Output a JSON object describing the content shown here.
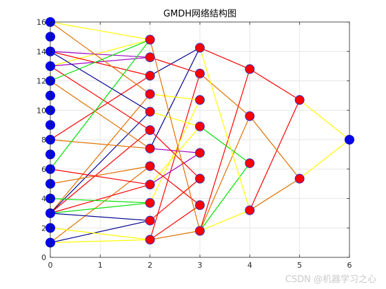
{
  "watermark": "CSDN @机器学习之心",
  "chart_data": {
    "type": "scatter",
    "title": "GMDH网络结构图",
    "xlabel": "",
    "ylabel": "",
    "xlim": [
      0,
      6
    ],
    "ylim": [
      0,
      16
    ],
    "xticks": [
      0,
      1,
      2,
      3,
      4,
      5,
      6
    ],
    "yticks": [
      0,
      2,
      4,
      6,
      8,
      10,
      12,
      14,
      16
    ],
    "grid": true,
    "nodes": [
      {
        "id": "L0_1",
        "layer": 0,
        "x": 0,
        "y": 1,
        "color": "#0000ff"
      },
      {
        "id": "L0_2",
        "layer": 0,
        "x": 0,
        "y": 2,
        "color": "#0000ff"
      },
      {
        "id": "L0_3",
        "layer": 0,
        "x": 0,
        "y": 3,
        "color": "#0000ff"
      },
      {
        "id": "L0_4",
        "layer": 0,
        "x": 0,
        "y": 4,
        "color": "#0000ff"
      },
      {
        "id": "L0_5",
        "layer": 0,
        "x": 0,
        "y": 5,
        "color": "#0000ff"
      },
      {
        "id": "L0_6",
        "layer": 0,
        "x": 0,
        "y": 6,
        "color": "#0000ff"
      },
      {
        "id": "L0_7",
        "layer": 0,
        "x": 0,
        "y": 7,
        "color": "#0000ff"
      },
      {
        "id": "L0_8",
        "layer": 0,
        "x": 0,
        "y": 8,
        "color": "#0000ff"
      },
      {
        "id": "L0_9",
        "layer": 0,
        "x": 0,
        "y": 9,
        "color": "#0000ff"
      },
      {
        "id": "L0_10",
        "layer": 0,
        "x": 0,
        "y": 10,
        "color": "#0000ff"
      },
      {
        "id": "L0_11",
        "layer": 0,
        "x": 0,
        "y": 11,
        "color": "#0000ff"
      },
      {
        "id": "L0_12",
        "layer": 0,
        "x": 0,
        "y": 12,
        "color": "#0000ff"
      },
      {
        "id": "L0_13",
        "layer": 0,
        "x": 0,
        "y": 13,
        "color": "#0000ff"
      },
      {
        "id": "L0_14",
        "layer": 0,
        "x": 0,
        "y": 14,
        "color": "#0000ff"
      },
      {
        "id": "L0_15",
        "layer": 0,
        "x": 0,
        "y": 15,
        "color": "#0000ff"
      },
      {
        "id": "L0_16",
        "layer": 0,
        "x": 0,
        "y": 16,
        "color": "#0000ff"
      },
      {
        "id": "L1_1",
        "layer": 1,
        "x": 2,
        "y": 1.2,
        "color": "#ff0000"
      },
      {
        "id": "L1_2",
        "layer": 1,
        "x": 2,
        "y": 2.5,
        "color": "#ff0000"
      },
      {
        "id": "L1_3",
        "layer": 1,
        "x": 2,
        "y": 3.7,
        "color": "#ff0000"
      },
      {
        "id": "L1_4",
        "layer": 1,
        "x": 2,
        "y": 4.95,
        "color": "#ff0000"
      },
      {
        "id": "L1_5",
        "layer": 1,
        "x": 2,
        "y": 6.2,
        "color": "#ff0000"
      },
      {
        "id": "L1_6",
        "layer": 1,
        "x": 2,
        "y": 7.4,
        "color": "#ff0000"
      },
      {
        "id": "L1_7",
        "layer": 1,
        "x": 2,
        "y": 8.65,
        "color": "#ff0000"
      },
      {
        "id": "L1_8",
        "layer": 1,
        "x": 2,
        "y": 9.9,
        "color": "#ff0000"
      },
      {
        "id": "L1_9",
        "layer": 1,
        "x": 2,
        "y": 11.1,
        "color": "#ff0000"
      },
      {
        "id": "L1_10",
        "layer": 1,
        "x": 2,
        "y": 12.35,
        "color": "#ff0000"
      },
      {
        "id": "L1_11",
        "layer": 1,
        "x": 2,
        "y": 13.6,
        "color": "#ff0000"
      },
      {
        "id": "L1_12",
        "layer": 1,
        "x": 2,
        "y": 14.8,
        "color": "#ff0000"
      },
      {
        "id": "L2_1",
        "layer": 2,
        "x": 3,
        "y": 1.8,
        "color": "#ff0000"
      },
      {
        "id": "L2_2",
        "layer": 2,
        "x": 3,
        "y": 3.55,
        "color": "#ff0000"
      },
      {
        "id": "L2_3",
        "layer": 2,
        "x": 3,
        "y": 5.35,
        "color": "#ff0000"
      },
      {
        "id": "L2_4",
        "layer": 2,
        "x": 3,
        "y": 7.1,
        "color": "#ff0000"
      },
      {
        "id": "L2_5",
        "layer": 2,
        "x": 3,
        "y": 8.9,
        "color": "#ff0000"
      },
      {
        "id": "L2_6",
        "layer": 2,
        "x": 3,
        "y": 10.7,
        "color": "#ff0000"
      },
      {
        "id": "L2_7",
        "layer": 2,
        "x": 3,
        "y": 12.5,
        "color": "#ff0000"
      },
      {
        "id": "L2_8",
        "layer": 2,
        "x": 3,
        "y": 14.25,
        "color": "#ff0000"
      },
      {
        "id": "L3_1",
        "layer": 3,
        "x": 4,
        "y": 3.2,
        "color": "#ff0000"
      },
      {
        "id": "L3_2",
        "layer": 3,
        "x": 4,
        "y": 6.4,
        "color": "#ff0000"
      },
      {
        "id": "L3_3",
        "layer": 3,
        "x": 4,
        "y": 9.6,
        "color": "#ff0000"
      },
      {
        "id": "L3_4",
        "layer": 3,
        "x": 4,
        "y": 12.8,
        "color": "#ff0000"
      },
      {
        "id": "L4_1",
        "layer": 4,
        "x": 5,
        "y": 5.35,
        "color": "#ff0000"
      },
      {
        "id": "L4_2",
        "layer": 4,
        "x": 5,
        "y": 10.7,
        "color": "#ff0000"
      },
      {
        "id": "L5_1",
        "layer": 5,
        "x": 6,
        "y": 8,
        "color": "#0000ff"
      }
    ],
    "edges": [
      {
        "from": "L0_16",
        "to": "L1_12",
        "color": "#ffff00"
      },
      {
        "from": "L0_13",
        "to": "L1_12",
        "color": "#ffff00"
      },
      {
        "from": "L0_14",
        "to": "L1_11",
        "color": "#a000c0"
      },
      {
        "from": "L0_13",
        "to": "L1_11",
        "color": "#a000c0"
      },
      {
        "from": "L0_14",
        "to": "L1_10",
        "color": "#ff0000"
      },
      {
        "from": "L0_8",
        "to": "L1_10",
        "color": "#ff0000"
      },
      {
        "from": "L0_16",
        "to": "L1_9",
        "color": "#e07000"
      },
      {
        "from": "L0_3",
        "to": "L1_9",
        "color": "#e07000"
      },
      {
        "from": "L0_14",
        "to": "L1_8",
        "color": "#000090"
      },
      {
        "from": "L0_3",
        "to": "L1_8",
        "color": "#000090"
      },
      {
        "from": "L0_13",
        "to": "L1_7",
        "color": "#ff0000"
      },
      {
        "from": "L0_3",
        "to": "L1_7",
        "color": "#ff0000"
      },
      {
        "from": "L0_12",
        "to": "L1_6",
        "color": "#e07000"
      },
      {
        "from": "L0_8",
        "to": "L1_6",
        "color": "#e07000"
      },
      {
        "from": "L0_5",
        "to": "L1_5",
        "color": "#e07000"
      },
      {
        "from": "L0_1",
        "to": "L1_5",
        "color": "#e07000"
      },
      {
        "from": "L0_6",
        "to": "L1_4",
        "color": "#ff0000"
      },
      {
        "from": "L0_3",
        "to": "L1_4",
        "color": "#ff0000"
      },
      {
        "from": "L0_4",
        "to": "L1_3",
        "color": "#00e000"
      },
      {
        "from": "L0_3",
        "to": "L1_3",
        "color": "#00e000"
      },
      {
        "from": "L0_3",
        "to": "L1_2",
        "color": "#000090"
      },
      {
        "from": "L0_1",
        "to": "L1_2",
        "color": "#000090"
      },
      {
        "from": "L0_2",
        "to": "L1_1",
        "color": "#ffff00"
      },
      {
        "from": "L0_1",
        "to": "L1_1",
        "color": "#ffff00"
      },
      {
        "from": "L0_12",
        "to": "L1_12",
        "color": "#00e000"
      },
      {
        "from": "L0_6",
        "to": "L1_12",
        "color": "#00e000"
      },
      {
        "from": "L1_10",
        "to": "L2_8",
        "color": "#000090"
      },
      {
        "from": "L1_6",
        "to": "L2_8",
        "color": "#000090"
      },
      {
        "from": "L1_11",
        "to": "L2_7",
        "color": "#ff0000"
      },
      {
        "from": "L1_1",
        "to": "L2_7",
        "color": "#ff0000"
      },
      {
        "from": "L1_9",
        "to": "L2_6",
        "color": "#ffff00"
      },
      {
        "from": "L1_3",
        "to": "L2_6",
        "color": "#ffff00"
      },
      {
        "from": "L1_8",
        "to": "L2_5",
        "color": "#ffff00"
      },
      {
        "from": "L1_4",
        "to": "L2_5",
        "color": "#ffff00"
      },
      {
        "from": "L1_6",
        "to": "L2_4",
        "color": "#a000c0"
      },
      {
        "from": "L1_4",
        "to": "L2_4",
        "color": "#a000c0"
      },
      {
        "from": "L1_7",
        "to": "L2_3",
        "color": "#ff0000"
      },
      {
        "from": "L1_2",
        "to": "L2_3",
        "color": "#ff0000"
      },
      {
        "from": "L1_5",
        "to": "L2_2",
        "color": "#ff0000"
      },
      {
        "from": "L1_1",
        "to": "L2_2",
        "color": "#ff0000"
      },
      {
        "from": "L1_12",
        "to": "L2_1",
        "color": "#e07000"
      },
      {
        "from": "L1_1",
        "to": "L2_1",
        "color": "#e07000"
      },
      {
        "from": "L2_8",
        "to": "L3_4",
        "color": "#ff0000"
      },
      {
        "from": "L2_1",
        "to": "L3_4",
        "color": "#ff0000"
      },
      {
        "from": "L2_7",
        "to": "L3_3",
        "color": "#e07000"
      },
      {
        "from": "L2_1",
        "to": "L3_3",
        "color": "#e07000"
      },
      {
        "from": "L2_5",
        "to": "L3_2",
        "color": "#00e000"
      },
      {
        "from": "L2_1",
        "to": "L3_2",
        "color": "#00e000"
      },
      {
        "from": "L2_8",
        "to": "L3_1",
        "color": "#ffff00"
      },
      {
        "from": "L2_1",
        "to": "L3_1",
        "color": "#ffff00"
      },
      {
        "from": "L3_4",
        "to": "L4_2",
        "color": "#ff0000"
      },
      {
        "from": "L3_1",
        "to": "L4_2",
        "color": "#ff0000"
      },
      {
        "from": "L3_3",
        "to": "L4_1",
        "color": "#e07000"
      },
      {
        "from": "L3_1",
        "to": "L4_1",
        "color": "#e07000"
      },
      {
        "from": "L4_2",
        "to": "L5_1",
        "color": "#ffff00"
      },
      {
        "from": "L4_1",
        "to": "L5_1",
        "color": "#ffff00"
      }
    ]
  }
}
